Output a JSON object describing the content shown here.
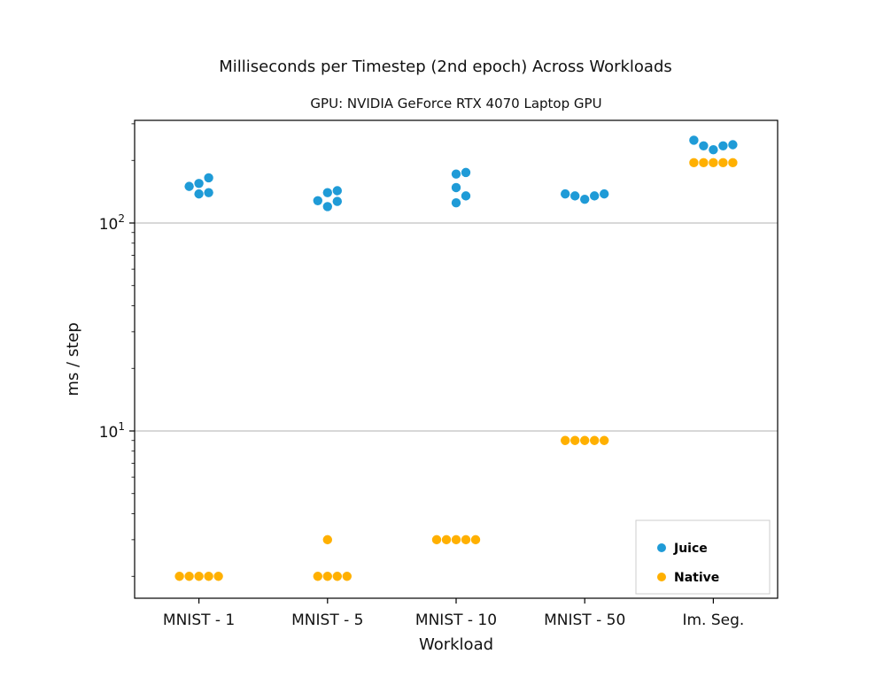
{
  "chart_data": {
    "type": "scatter",
    "title": "Milliseconds per Timestep (2nd epoch) Across Workloads",
    "subtitle": "GPU: NVIDIA GeForce RTX 4070 Laptop GPU",
    "xlabel": "Workload",
    "ylabel": "ms / step",
    "yscale": "log",
    "ylim": [
      1.6,
      300
    ],
    "grid": "horizontal major",
    "legend_position": "lower-right",
    "categories": [
      "MNIST - 1",
      "MNIST - 5",
      "MNIST - 10",
      "MNIST - 50",
      "Im. Seg."
    ],
    "y_ticks": [
      {
        "base": "10",
        "exp": "1",
        "value": 10
      },
      {
        "base": "10",
        "exp": "2",
        "value": 100
      }
    ],
    "series": [
      {
        "name": "Juice",
        "color": "#1f9bd7",
        "values": [
          [
            165,
            150,
            155,
            138,
            140
          ],
          [
            143,
            140,
            127,
            120,
            128
          ],
          [
            175,
            172,
            148,
            135,
            125
          ],
          [
            138,
            135,
            130,
            135,
            138
          ],
          [
            250,
            235,
            225,
            235,
            238
          ]
        ]
      },
      {
        "name": "Native",
        "color": "#ffb000",
        "values": [
          [
            2,
            2,
            2,
            2,
            2
          ],
          [
            2,
            2,
            2,
            2,
            3
          ],
          [
            3,
            3,
            3,
            3,
            3
          ],
          [
            9,
            9,
            9,
            9,
            9
          ],
          [
            195,
            195,
            195,
            195,
            195
          ]
        ]
      }
    ]
  }
}
